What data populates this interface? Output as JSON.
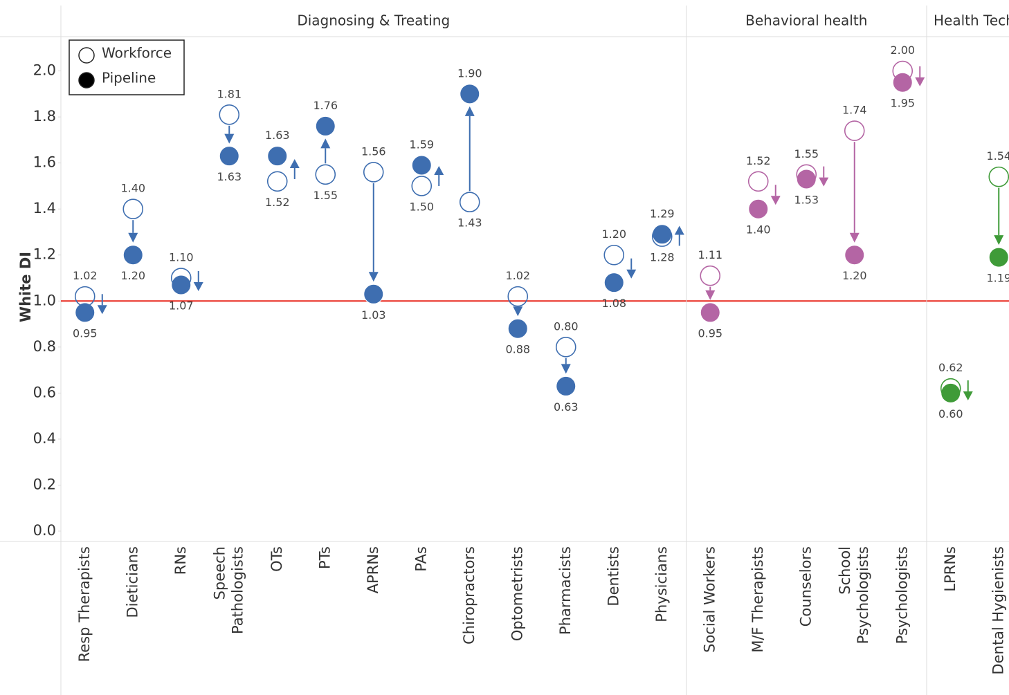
{
  "chart_data": {
    "type": "dumbbell",
    "y_label": "White DI",
    "groups": [
      {
        "name": "Diagnosing & Treating",
        "color": "#3e6eb0",
        "categories": [
          "Resp Therapists",
          "Dieticians",
          "RNs",
          "Speech Pathologists",
          "OTs",
          "PTs",
          "APRNs",
          "PAs",
          "Chiropractors",
          "Optometrists",
          "Pharmacists",
          "Dentists",
          "Physicians"
        ]
      },
      {
        "name": "Behavioral health",
        "color": "#b465a4",
        "categories": [
          "Social Workers",
          "M/F Therapists",
          "Counselors",
          "School Psychologists",
          "Psychologists"
        ]
      },
      {
        "name": "Health Tech",
        "color": "#3f9b38",
        "categories": [
          "LPRNs",
          "Dental Hygienists"
        ]
      }
    ],
    "series": [
      {
        "name": "Workforce",
        "marker": "hollow",
        "values": [
          1.02,
          1.4,
          1.1,
          1.81,
          1.52,
          1.55,
          1.56,
          1.5,
          1.43,
          1.02,
          0.8,
          1.2,
          1.28,
          1.11,
          1.52,
          1.55,
          1.74,
          2.0,
          0.62,
          1.54
        ],
        "value_labels": [
          "1.02",
          "1.40",
          "1.10",
          "1.81",
          "1.52",
          "1.55",
          "1.56",
          "1.50",
          "1.43",
          "1.02",
          "0.80",
          "1.20",
          "1.28",
          "1.11",
          "1.52",
          "1.55",
          "1.74",
          "2.00",
          "0.62",
          "1.54"
        ]
      },
      {
        "name": "Pipeline",
        "marker": "filled",
        "values": [
          0.95,
          1.2,
          1.07,
          1.63,
          1.63,
          1.76,
          1.03,
          1.59,
          1.9,
          0.88,
          0.63,
          1.08,
          1.29,
          0.95,
          1.4,
          1.53,
          1.2,
          1.95,
          0.6,
          1.19
        ],
        "value_labels": [
          "0.95",
          "1.20",
          "1.07",
          "1.63",
          "1.63",
          "1.76",
          "1.03",
          "1.59",
          "1.90",
          "0.88",
          "0.63",
          "1.08",
          "1.29",
          "0.95",
          "1.40",
          "1.53",
          "1.20",
          "1.95",
          "0.60",
          "1.19"
        ]
      }
    ],
    "reference_line": 1,
    "reference_color": "#e8281e",
    "ylim": [
      0,
      2.14
    ],
    "yticks": [
      {
        "value": 0,
        "label": "0.0"
      },
      0.2,
      0.4,
      0.6,
      0.8,
      {
        "value": 1,
        "label": "1.0"
      },
      1.2,
      1.4,
      1.6,
      1.8,
      {
        "value": 2,
        "label": "2.0"
      }
    ],
    "legend": "top-left"
  }
}
